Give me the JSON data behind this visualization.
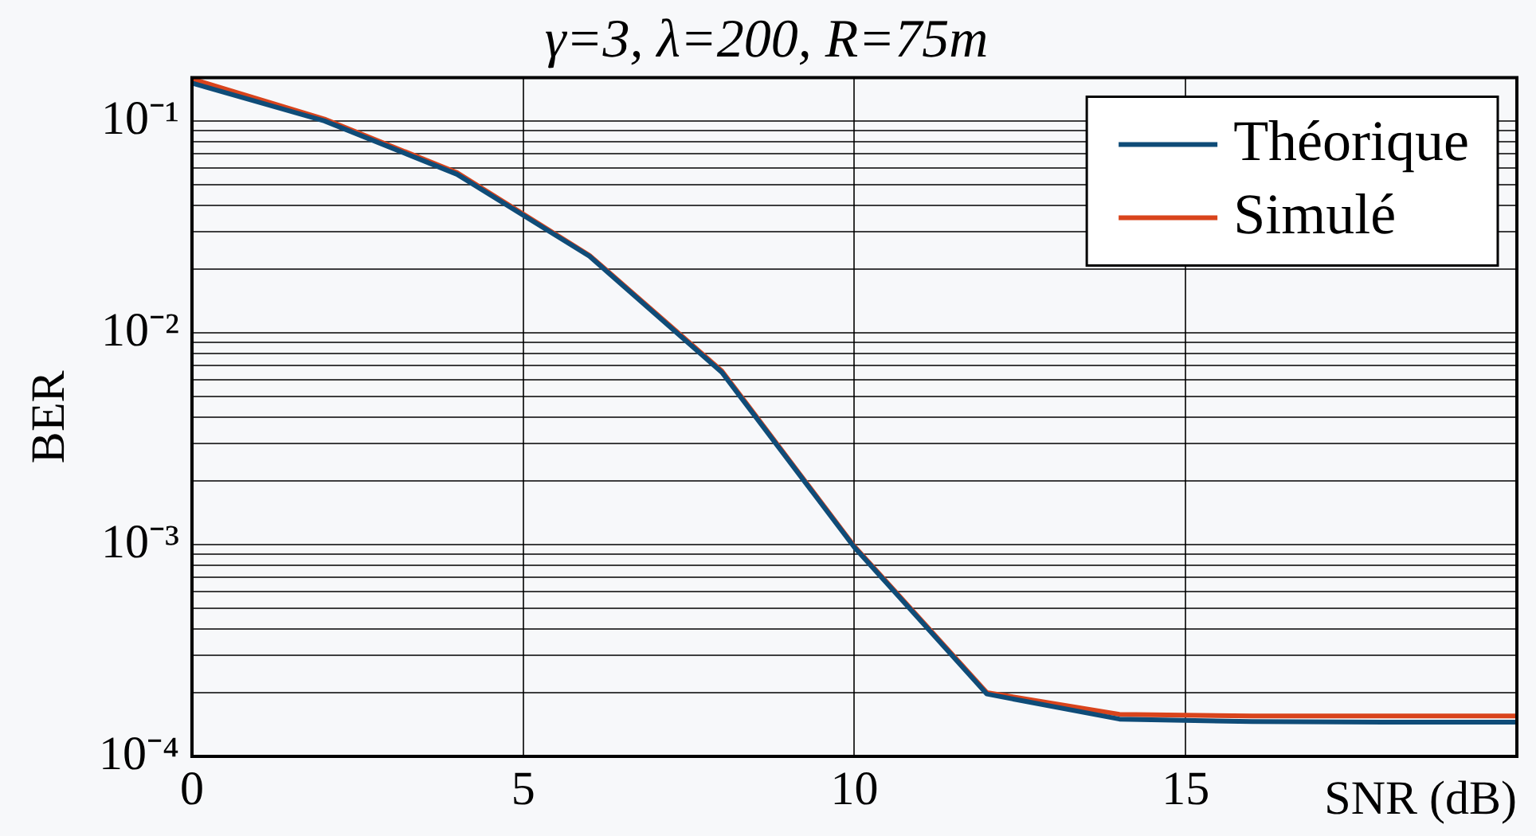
{
  "chart_data": {
    "type": "line",
    "title": "γ=3, λ=200, R=75m",
    "xlabel": "SNR (dB)",
    "ylabel": "BER",
    "x": [
      0,
      2,
      4,
      6,
      8,
      10,
      12,
      14,
      16,
      18,
      20
    ],
    "series": [
      {
        "name": "Théorique",
        "color": "#0f4c78",
        "values": [
          0.151,
          0.1,
          0.056,
          0.023,
          0.0065,
          0.00097,
          0.000197,
          0.00015,
          0.000146,
          0.000145,
          0.000145
        ]
      },
      {
        "name": "Simulé",
        "color": "#d9441c",
        "values": [
          0.158,
          0.102,
          0.057,
          0.0232,
          0.0066,
          0.00098,
          0.0002,
          0.000158,
          0.000155,
          0.000155,
          0.000155
        ]
      }
    ],
    "xlim": [
      0,
      20
    ],
    "xticks": [
      0,
      5,
      10,
      15,
      {
        "value": 20,
        "label": null
      }
    ],
    "ylim": [
      0.0001,
      0.16
    ],
    "log": "y",
    "yticks": [
      {
        "value": 0.0001,
        "label": "10⁻⁴"
      },
      {
        "value": 0.0002,
        "label": null
      },
      {
        "value": 0.0003,
        "label": null
      },
      {
        "value": 0.0004,
        "label": null
      },
      {
        "value": 0.0005,
        "label": null
      },
      {
        "value": 0.0006,
        "label": null
      },
      {
        "value": 0.0007,
        "label": null
      },
      {
        "value": 0.0008,
        "label": null
      },
      {
        "value": 0.0009,
        "label": null
      },
      {
        "value": 0.001,
        "label": "10⁻³"
      },
      {
        "value": 0.002,
        "label": null
      },
      {
        "value": 0.003,
        "label": null
      },
      {
        "value": 0.004,
        "label": null
      },
      {
        "value": 0.005,
        "label": null
      },
      {
        "value": 0.006,
        "label": null
      },
      {
        "value": 0.007,
        "label": null
      },
      {
        "value": 0.008,
        "label": null
      },
      {
        "value": 0.009,
        "label": null
      },
      {
        "value": 0.01,
        "label": "10⁻²"
      },
      {
        "value": 0.02,
        "label": null
      },
      {
        "value": 0.03,
        "label": null
      },
      {
        "value": 0.04,
        "label": null
      },
      {
        "value": 0.05,
        "label": null
      },
      {
        "value": 0.06,
        "label": null
      },
      {
        "value": 0.07,
        "label": null
      },
      {
        "value": 0.08,
        "label": null
      },
      {
        "value": 0.09,
        "label": null
      },
      {
        "value": 0.1,
        "label": "10⁻¹"
      }
    ],
    "grid": true,
    "legend": "top right",
    "marker": "none",
    "line_style": "solid"
  }
}
